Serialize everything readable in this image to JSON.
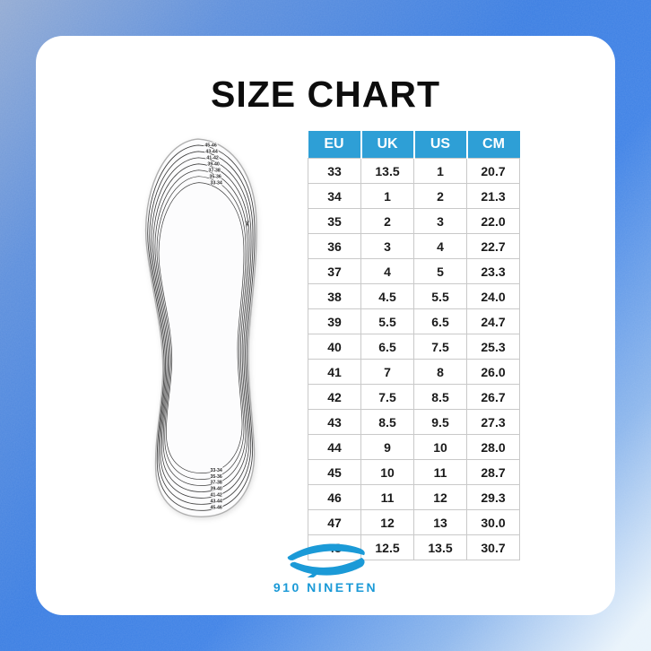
{
  "title": "SIZE CHART",
  "chart_data": {
    "type": "table",
    "title": "SIZE CHART",
    "columns": [
      "EU",
      "UK",
      "US",
      "CM"
    ],
    "rows": [
      [
        "33",
        "13.5",
        "1",
        "20.7"
      ],
      [
        "34",
        "1",
        "2",
        "21.3"
      ],
      [
        "35",
        "2",
        "3",
        "22.0"
      ],
      [
        "36",
        "3",
        "4",
        "22.7"
      ],
      [
        "37",
        "4",
        "5",
        "23.3"
      ],
      [
        "38",
        "4.5",
        "5.5",
        "24.0"
      ],
      [
        "39",
        "5.5",
        "6.5",
        "24.7"
      ],
      [
        "40",
        "6.5",
        "7.5",
        "25.3"
      ],
      [
        "41",
        "7",
        "8",
        "26.0"
      ],
      [
        "42",
        "7.5",
        "8.5",
        "26.7"
      ],
      [
        "43",
        "8.5",
        "9.5",
        "27.3"
      ],
      [
        "44",
        "9",
        "10",
        "28.0"
      ],
      [
        "45",
        "10",
        "11",
        "28.7"
      ],
      [
        "46",
        "11",
        "12",
        "29.3"
      ],
      [
        "47",
        "12",
        "13",
        "30.0"
      ],
      [
        "48",
        "12.5",
        "13.5",
        "30.7"
      ]
    ],
    "header_bg": "#2e9fd6",
    "grid": true,
    "legend_position": "none"
  },
  "insole": {
    "toe_labels": [
      "45-46",
      "43-44",
      "41-42",
      "39-40",
      "37-38",
      "35-36",
      "33-34"
    ],
    "heel_labels": [
      "33-34",
      "35-36",
      "37-38",
      "39-40",
      "41-42",
      "43-44",
      "45-46"
    ],
    "scissors_icon": "✂"
  },
  "brand": {
    "name": "910 NINETEN",
    "color": "#1b9ad7"
  },
  "colors": {
    "accent_blue": "#2e9fd6",
    "frame_blue": "#3b7ee2",
    "text_dark": "#1a1a1a"
  }
}
